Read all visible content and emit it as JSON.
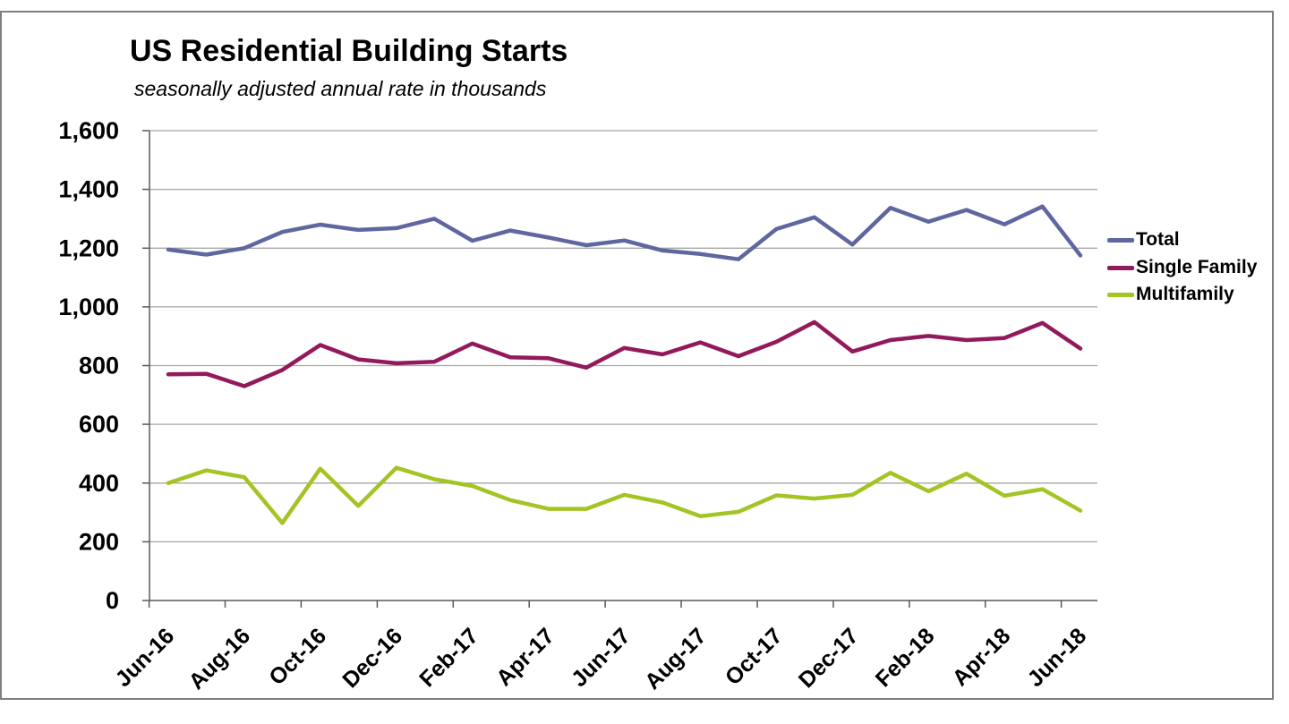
{
  "chart": {
    "title": "US Residential Building Starts",
    "subtitle": "seasonally adjusted annual rate in thousands"
  },
  "chart_data": {
    "type": "line",
    "title": "US Residential Building Starts",
    "subtitle": "seasonally adjusted annual rate in thousands",
    "xlabel": "",
    "ylabel": "",
    "ylim": [
      0,
      1600
    ],
    "y_tick_step": 200,
    "grid": "horizontal",
    "legend_position": "right",
    "categories": [
      "Jun-16",
      "Jul-16",
      "Aug-16",
      "Sep-16",
      "Oct-16",
      "Nov-16",
      "Dec-16",
      "Jan-17",
      "Feb-17",
      "Mar-17",
      "Apr-17",
      "May-17",
      "Jun-17",
      "Jul-17",
      "Aug-17",
      "Sep-17",
      "Oct-17",
      "Nov-17",
      "Dec-17",
      "Jan-18",
      "Feb-18",
      "Mar-18",
      "Apr-18",
      "May-18",
      "Jun-18"
    ],
    "x_tick_labels": [
      "Jun-16",
      "Aug-16",
      "Oct-16",
      "Dec-16",
      "Feb-17",
      "Apr-17",
      "Jun-17",
      "Aug-17",
      "Oct-17",
      "Dec-17",
      "Feb-18",
      "Apr-18",
      "Jun-18"
    ],
    "y_tick_labels": [
      "0",
      "200",
      "400",
      "600",
      "800",
      "1,000",
      "1,200",
      "1,400",
      "1,600"
    ],
    "series": [
      {
        "name": "Total",
        "color": "#5F66A0",
        "values": [
          1195,
          1178,
          1200,
          1255,
          1280,
          1262,
          1268,
          1300,
          1225,
          1260,
          1236,
          1210,
          1226,
          1192,
          1180,
          1162,
          1265,
          1305,
          1212,
          1337,
          1290,
          1330,
          1281,
          1342,
          1175
        ]
      },
      {
        "name": "Single Family",
        "color": "#92195C",
        "values": [
          770,
          772,
          730,
          785,
          870,
          821,
          808,
          813,
          875,
          828,
          825,
          793,
          860,
          838,
          879,
          832,
          881,
          948,
          848,
          887,
          901,
          887,
          894,
          945,
          858
        ]
      },
      {
        "name": "Multifamily",
        "color": "#A4C425",
        "values": [
          400,
          443,
          420,
          264,
          449,
          322,
          452,
          413,
          390,
          342,
          312,
          312,
          360,
          334,
          287,
          302,
          358,
          347,
          360,
          435,
          372,
          432,
          357,
          379,
          306
        ]
      }
    ]
  },
  "colors": {
    "gridline": "#A6A6A6",
    "axis": "#595959",
    "frame_border": "#7F7F7F",
    "text": "#000000"
  }
}
